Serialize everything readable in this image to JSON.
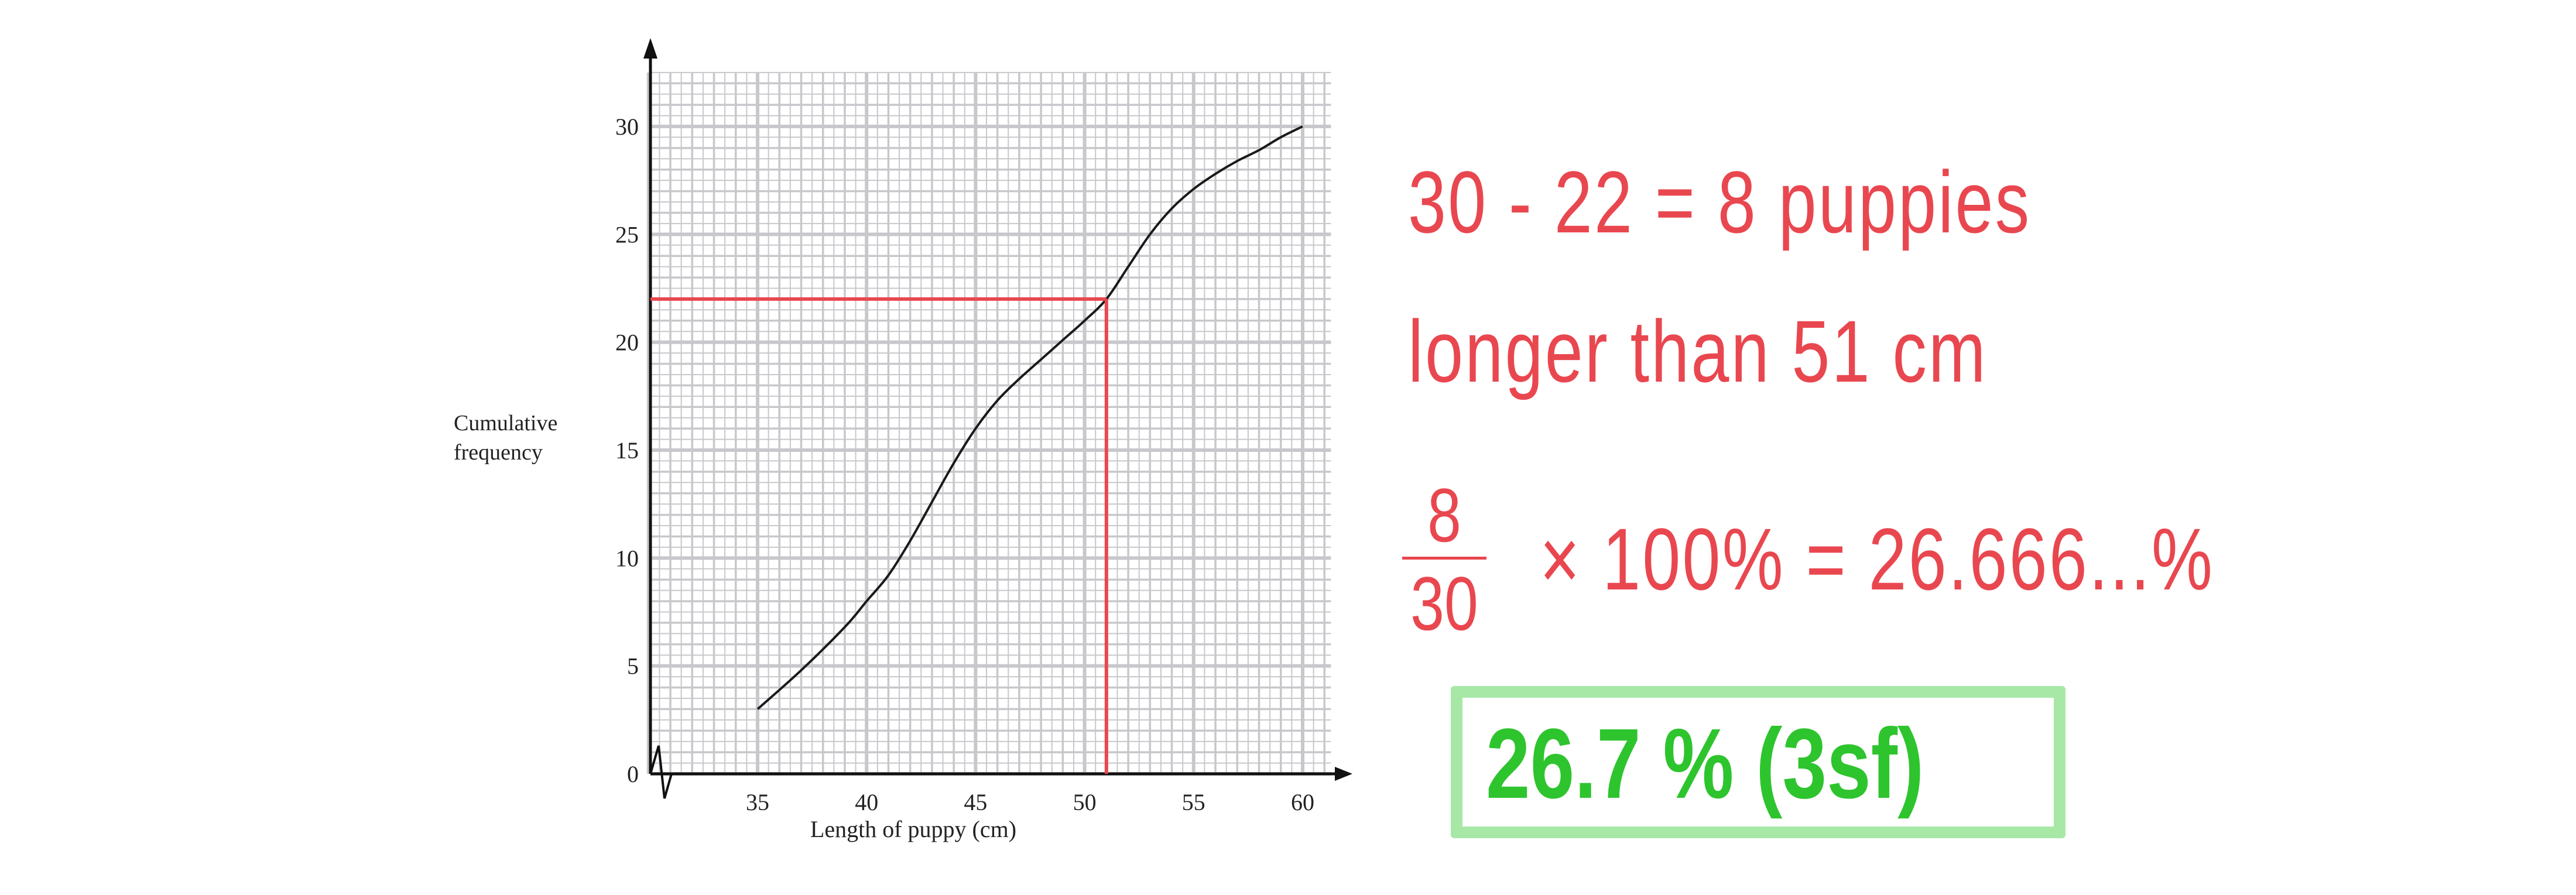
{
  "chart_data": {
    "type": "line",
    "xlabel": "Length of puppy (cm)",
    "ylabel_lines": [
      "Cumulative",
      "frequency"
    ],
    "xlim": [
      30,
      61.3
    ],
    "ylim": [
      0,
      32.5
    ],
    "x_ticks": [
      35,
      40,
      45,
      50,
      55,
      60
    ],
    "y_ticks": [
      0,
      5,
      10,
      15,
      20,
      25,
      30
    ],
    "x_axis_broken": true,
    "grid": true,
    "series": [
      {
        "x": [
          35,
          37,
          39,
          40,
          41,
          42,
          43,
          44,
          45,
          46,
          47,
          48,
          49,
          50,
          51,
          52,
          53,
          54,
          55,
          56,
          57,
          58,
          59,
          60
        ],
        "y": [
          3,
          4.8,
          6.8,
          8,
          9.2,
          10.8,
          12.6,
          14.4,
          16,
          17.3,
          18.3,
          19.2,
          20.1,
          21,
          22,
          23.5,
          25,
          26.2,
          27.1,
          27.8,
          28.4,
          28.9,
          29.5,
          30
        ]
      }
    ],
    "annotation_lines": {
      "y_value": 22,
      "x_value": 51,
      "color": "#e9474f"
    },
    "curve_color": "#1a1a1a",
    "grid_color": "#c8c8cc"
  },
  "working": {
    "line1": "30 - 22 = 8  puppies",
    "line2": "longer  than  51 cm",
    "fraction_numerator": "8",
    "fraction_denominator": "30",
    "line3": "× 100%   = 26.666...%",
    "answer": "26.7 %  (3sf)",
    "red": "#e9474f",
    "green": "#2ec42e",
    "box_border": "#a7e8a7"
  }
}
